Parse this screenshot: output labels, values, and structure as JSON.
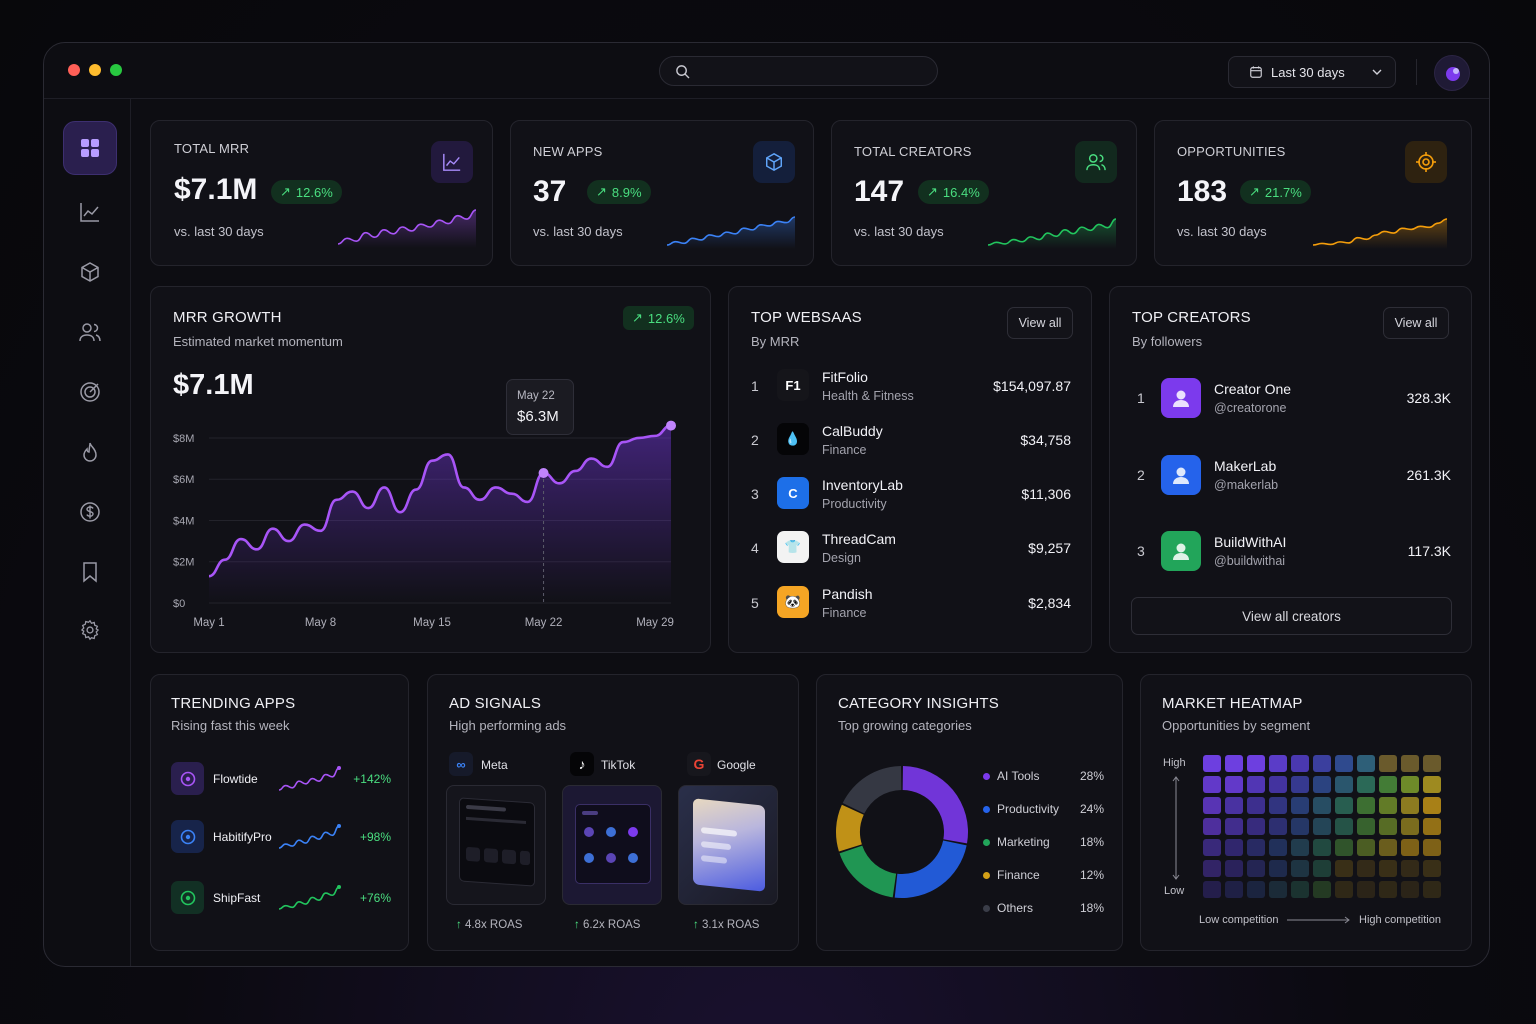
{
  "topbar": {
    "search_placeholder": "",
    "date_range": "Last 30 days"
  },
  "sidebar": {
    "items": [
      "dashboard",
      "analytics",
      "apps",
      "creators",
      "opportunities",
      "trending",
      "revenue",
      "saved",
      "settings"
    ]
  },
  "kpis": [
    {
      "title": "TOTAL MRR",
      "value": "$7.1M",
      "change": "12.6%",
      "sub": "vs. last 30 days",
      "color": "#a855f7",
      "icon": "chart-line-icon",
      "spark": [
        3,
        4,
        3.5,
        5,
        4.2,
        5.5,
        4.8,
        6,
        5.3,
        6.5,
        6,
        7.2,
        6.6,
        8,
        7.4,
        9
      ]
    },
    {
      "title": "NEW APPS",
      "value": "37",
      "change": "8.9%",
      "sub": "vs. last 30 days",
      "color": "#3b82f6",
      "icon": "cube-icon",
      "spark": [
        2,
        2.6,
        2.3,
        3.2,
        2.9,
        3.8,
        3.5,
        4.3,
        4,
        5,
        4.7,
        5.6,
        5.4,
        6.2,
        6,
        7
      ]
    },
    {
      "title": "TOTAL CREATORS",
      "value": "147",
      "change": "16.4%",
      "sub": "vs. last 30 days",
      "color": "#22c55e",
      "icon": "users-icon",
      "spark": [
        2,
        2.5,
        2.2,
        3,
        2.6,
        3.5,
        3,
        4.2,
        3.6,
        4.8,
        4.1,
        5.3,
        4.7,
        5.8,
        5.2,
        6.8
      ]
    },
    {
      "title": "OPPORTUNITIES",
      "value": "183",
      "change": "21.7%",
      "sub": "vs. last 30 days",
      "color": "#f59e0b",
      "icon": "target-icon",
      "spark": [
        2,
        2.3,
        2.1,
        2.6,
        2.4,
        3.4,
        3.1,
        3.9,
        4.6,
        4.3,
        5.2,
        5,
        5.6,
        5.4,
        6.2,
        7
      ]
    }
  ],
  "mrr": {
    "title": "MRR GROWTH",
    "subtitle": "Estimated market momentum",
    "value": "$7.1M",
    "change": "12.6%",
    "tooltip_date": "May 22",
    "tooltip_value": "$6.3M"
  },
  "chart_data": {
    "type": "line",
    "title": "MRR GROWTH",
    "x": [
      "May 1",
      "May 2",
      "May 3",
      "May 4",
      "May 5",
      "May 6",
      "May 7",
      "May 8",
      "May 9",
      "May 10",
      "May 11",
      "May 12",
      "May 13",
      "May 14",
      "May 15",
      "May 16",
      "May 17",
      "May 18",
      "May 19",
      "May 20",
      "May 21",
      "May 22",
      "May 23",
      "May 24",
      "May 25",
      "May 26",
      "May 27",
      "May 28",
      "May 29",
      "May 30"
    ],
    "series": [
      {
        "values": [
          1.3,
          2.1,
          3.1,
          2.6,
          3.6,
          3.0,
          3.8,
          3.5,
          5.0,
          5.4,
          4.6,
          5.6,
          4.4,
          5.5,
          6.9,
          7.2,
          5.6,
          5.0,
          5.6,
          5.3,
          4.9,
          6.3,
          5.8,
          6.4,
          7.0,
          6.6,
          7.8,
          8.0,
          8.1,
          8.6
        ]
      }
    ],
    "x_ticks": [
      "May 1",
      "May 8",
      "May 15",
      "May 22",
      "May 29"
    ],
    "y_ticks": [
      "$0",
      "$2M",
      "$4M",
      "$6M",
      "$8M"
    ],
    "ylim": [
      0,
      9.5
    ],
    "grid": true
  },
  "websaas": {
    "title": "TOP WEBSAAS",
    "subtitle": "By MRR",
    "view_all": "View all",
    "items": [
      {
        "rank": "1",
        "name": "FitFolio",
        "cat": "Health & Fitness",
        "value": "$154,097.87",
        "logo": "F1",
        "bg": "#15151a",
        "fg": "#ffffff"
      },
      {
        "rank": "2",
        "name": "CalBuddy",
        "cat": "Finance",
        "value": "$34,758",
        "logo": "💧",
        "bg": "#050507",
        "fg": "#ffffff"
      },
      {
        "rank": "3",
        "name": "InventoryLab",
        "cat": "Productivity",
        "value": "$11,306",
        "logo": "C",
        "bg": "#1d6fe8",
        "fg": "#ffffff"
      },
      {
        "rank": "4",
        "name": "ThreadCam",
        "cat": "Design",
        "value": "$9,257",
        "logo": "👕",
        "bg": "#f3f3f3",
        "fg": "#7a3b12"
      },
      {
        "rank": "5",
        "name": "Pandish",
        "cat": "Finance",
        "value": "$2,834",
        "logo": "🐼",
        "bg": "#f5a524",
        "fg": "#111111"
      }
    ]
  },
  "creators": {
    "title": "TOP CREATORS",
    "subtitle": "By followers",
    "view_all": "View all",
    "view_all_creators": "View all creators",
    "items": [
      {
        "rank": "1",
        "name": "Creator One",
        "handle": "@creatorone",
        "value": "328.3K",
        "bg": "#7c3aed"
      },
      {
        "rank": "2",
        "name": "MakerLab",
        "handle": "@makerlab",
        "value": "261.3K",
        "bg": "#2563eb"
      },
      {
        "rank": "3",
        "name": "BuildWithAI",
        "handle": "@buildwithai",
        "value": "117.3K",
        "bg": "#22a55a"
      }
    ]
  },
  "trending": {
    "title": "TRENDING APPS",
    "subtitle": "Rising fast this week",
    "items": [
      {
        "name": "Flowtide",
        "pct": "+142%",
        "color": "#a855f7",
        "bg": "#2a1f4e",
        "spark": [
          1,
          2,
          1.5,
          3,
          2.4,
          3.6,
          3,
          4.5,
          4,
          6
        ]
      },
      {
        "name": "HabitifyPro",
        "pct": "+98%",
        "color": "#3b82f6",
        "bg": "#17244a",
        "spark": [
          1,
          1.8,
          1.4,
          2.6,
          2,
          3.4,
          2.8,
          4.2,
          3.6,
          5.5
        ]
      },
      {
        "name": "ShipFast",
        "pct": "+76%",
        "color": "#22c55e",
        "bg": "#123024",
        "spark": [
          1,
          1.6,
          1.3,
          2.3,
          1.9,
          3.1,
          2.6,
          3.9,
          3.5,
          5
        ]
      }
    ]
  },
  "ads": {
    "title": "AD SIGNALS",
    "subtitle": "High performing ads",
    "items": [
      {
        "platform": "Meta",
        "roas": "4.8x ROAS",
        "icon": "meta-icon"
      },
      {
        "platform": "TikTok",
        "roas": "6.2x ROAS",
        "icon": "tiktok-icon"
      },
      {
        "platform": "Google",
        "roas": "3.1x ROAS",
        "icon": "google-icon"
      }
    ]
  },
  "categories": {
    "title": "CATEGORY INSIGHTS",
    "subtitle": "Top growing categories",
    "items": [
      {
        "name": "AI Tools",
        "pct": "28%",
        "value": 28,
        "color": "#7c3aed"
      },
      {
        "name": "Productivity",
        "pct": "24%",
        "value": 24,
        "color": "#2563eb"
      },
      {
        "name": "Marketing",
        "pct": "18%",
        "value": 18,
        "color": "#22a55a"
      },
      {
        "name": "Finance",
        "pct": "12%",
        "value": 12,
        "color": "#d4a017"
      },
      {
        "name": "Others",
        "pct": "18%",
        "value": 18,
        "color": "#3a3d48"
      }
    ]
  },
  "heatmap": {
    "title": "MARKET HEATMAP",
    "subtitle": "Opportunities by segment",
    "high": "High",
    "low": "Low",
    "low_comp": "Low competition",
    "high_comp": "High competition"
  }
}
